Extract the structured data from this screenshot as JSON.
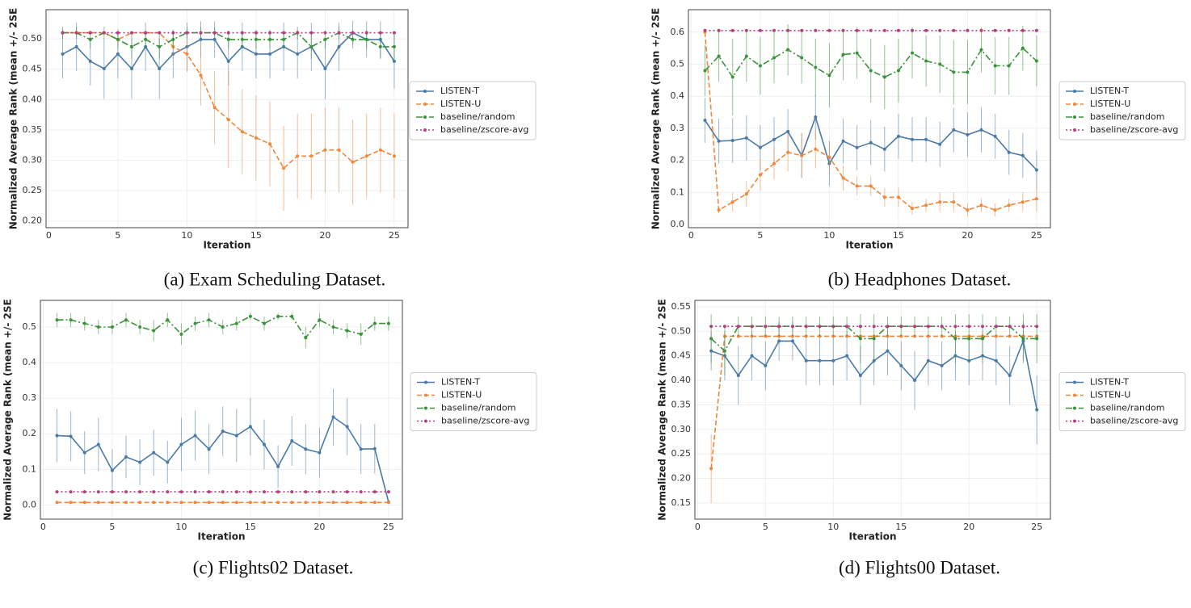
{
  "chart_data": [
    {
      "type": "line",
      "caption": "(a) Exam Scheduling Dataset.",
      "xlabel": "Iteration",
      "ylabel": "Normalized Average Rank (mean +/- 2SE",
      "x": [
        1,
        2,
        3,
        4,
        5,
        6,
        7,
        8,
        9,
        10,
        11,
        12,
        13,
        14,
        15,
        16,
        17,
        18,
        19,
        20,
        21,
        22,
        23,
        24,
        25
      ],
      "xlim": [
        -0.2,
        26.0
      ],
      "xticks": [
        0,
        5,
        10,
        15,
        20,
        25
      ],
      "ylim": [
        0.189,
        0.548
      ],
      "yticks": [
        {
          "value": 0.2,
          "label": "0.20"
        },
        0.25,
        {
          "value": 0.3,
          "label": "0.30"
        },
        0.35,
        {
          "value": 0.4,
          "label": "0.40"
        },
        0.45,
        {
          "value": 0.5,
          "label": "0.50"
        }
      ],
      "grid": true,
      "legend": "outside right",
      "series": [
        {
          "name": "LISTEN-T",
          "color": "#4a7aa8",
          "dash": "solid",
          "values": [
            0.475,
            0.487,
            0.463,
            0.451,
            0.475,
            0.451,
            0.487,
            0.451,
            0.475,
            0.487,
            0.499,
            0.499,
            0.463,
            0.487,
            0.475,
            0.475,
            0.487,
            0.475,
            0.487,
            0.451,
            0.487,
            0.51,
            0.499,
            0.499,
            0.463
          ],
          "errors": [
            0.04,
            0.04,
            0.04,
            0.05,
            0.04,
            0.05,
            0.04,
            0.05,
            0.04,
            0.04,
            0.03,
            0.03,
            0.04,
            0.04,
            0.04,
            0.04,
            0.04,
            0.04,
            0.04,
            0.05,
            0.04,
            0.02,
            0.03,
            0.03,
            0.045
          ]
        },
        {
          "name": "LISTEN-U",
          "color": "#f0873c",
          "dash": "dashed",
          "values": [
            0.51,
            0.51,
            0.51,
            0.51,
            0.499,
            0.51,
            0.51,
            0.51,
            0.487,
            0.475,
            0.44,
            0.387,
            0.367,
            0.347,
            0.337,
            0.327,
            0.287,
            0.307,
            0.307,
            0.317,
            0.317,
            0.297,
            0.307,
            0.317,
            0.307
          ],
          "errors": [
            0,
            0,
            0,
            0,
            0.01,
            0,
            0,
            0,
            0.02,
            0.03,
            0.05,
            0.06,
            0.08,
            0.07,
            0.07,
            0.07,
            0.07,
            0.07,
            0.07,
            0.07,
            0.07,
            0.07,
            0.07,
            0.07,
            0.07
          ]
        },
        {
          "name": "baseline/random",
          "color": "#3a923a",
          "dash": "dashdot",
          "values": [
            0.51,
            0.51,
            0.499,
            0.51,
            0.499,
            0.487,
            0.499,
            0.487,
            0.499,
            0.51,
            0.51,
            0.51,
            0.499,
            0.499,
            0.499,
            0.499,
            0.499,
            0.51,
            0.487,
            0.499,
            0.51,
            0.499,
            0.499,
            0.487,
            0.487
          ],
          "errors": [
            0.01,
            0.01,
            0.015,
            0.01,
            0.015,
            0.02,
            0.015,
            0.02,
            0.015,
            0.01,
            0.01,
            0.01,
            0.015,
            0.015,
            0.015,
            0.015,
            0.015,
            0.01,
            0.02,
            0.015,
            0.01,
            0.015,
            0.015,
            0.02,
            0.02
          ]
        },
        {
          "name": "baseline/zscore-avg",
          "color": "#b3417f",
          "dash": "dotted",
          "values": [
            0.51,
            0.51,
            0.51,
            0.51,
            0.51,
            0.51,
            0.51,
            0.51,
            0.51,
            0.51,
            0.51,
            0.51,
            0.51,
            0.51,
            0.51,
            0.51,
            0.51,
            0.51,
            0.51,
            0.51,
            0.51,
            0.51,
            0.51,
            0.51,
            0.51
          ]
        }
      ]
    },
    {
      "type": "line",
      "caption": "(b) Headphones Dataset.",
      "xlabel": "Iteration",
      "ylabel": "Normalized Average Rank (mean +/- 2SE",
      "x": [
        1,
        2,
        3,
        4,
        5,
        6,
        7,
        8,
        9,
        10,
        11,
        12,
        13,
        14,
        15,
        16,
        17,
        18,
        19,
        20,
        21,
        22,
        23,
        24,
        25
      ],
      "xlim": [
        -0.2,
        26.0
      ],
      "xticks": [
        0,
        5,
        10,
        15,
        20,
        25
      ],
      "ylim": [
        -0.01,
        0.67
      ],
      "yticks": [
        {
          "value": 0,
          "label": "0.0"
        },
        0.1,
        0.2,
        0.3,
        0.4,
        0.5,
        0.6
      ],
      "grid": true,
      "legend": "outside right",
      "series": [
        {
          "name": "LISTEN-T",
          "color": "#4a7aa8",
          "dash": "solid",
          "values": [
            0.325,
            0.26,
            0.262,
            0.27,
            0.24,
            0.265,
            0.29,
            0.215,
            0.335,
            0.19,
            0.26,
            0.24,
            0.255,
            0.235,
            0.275,
            0.265,
            0.265,
            0.25,
            0.295,
            0.28,
            0.295,
            0.275,
            0.225,
            0.215,
            0.17
          ],
          "errors": [
            0.07,
            0.07,
            0.07,
            0.07,
            0.07,
            0.07,
            0.07,
            0.07,
            0.07,
            0.07,
            0.07,
            0.07,
            0.07,
            0.07,
            0.07,
            0.07,
            0.07,
            0.07,
            0.07,
            0.07,
            0.07,
            0.07,
            0.07,
            0.07,
            0.06
          ]
        },
        {
          "name": "LISTEN-U",
          "color": "#f0873c",
          "dash": "dashed",
          "values": [
            0.6,
            0.045,
            0.07,
            0.095,
            0.155,
            0.19,
            0.225,
            0.215,
            0.235,
            0.21,
            0.145,
            0.12,
            0.12,
            0.085,
            0.085,
            0.05,
            0.06,
            0.07,
            0.07,
            0.045,
            0.06,
            0.045,
            0.06,
            0.07,
            0.08
          ],
          "errors": [
            0,
            0.01,
            0.03,
            0.04,
            0.05,
            0.05,
            0.06,
            0.07,
            0.06,
            0.05,
            0.04,
            0.03,
            0.03,
            0.03,
            0.03,
            0.02,
            0.02,
            0.03,
            0.03,
            0.02,
            0.02,
            0.02,
            0.02,
            0.03,
            0.04
          ]
        },
        {
          "name": "baseline/random",
          "color": "#3a923a",
          "dash": "dashdot",
          "values": [
            0.48,
            0.525,
            0.46,
            0.525,
            0.495,
            0.52,
            0.545,
            0.52,
            0.49,
            0.465,
            0.53,
            0.535,
            0.48,
            0.46,
            0.48,
            0.535,
            0.51,
            0.5,
            0.475,
            0.475,
            0.545,
            0.495,
            0.495,
            0.55,
            0.51
          ],
          "errors": [
            0.08,
            0.08,
            0.12,
            0.08,
            0.09,
            0.08,
            0.08,
            0.08,
            0.09,
            0.1,
            0.08,
            0.08,
            0.1,
            0.1,
            0.1,
            0.08,
            0.08,
            0.09,
            0.1,
            0.1,
            0.07,
            0.09,
            0.09,
            0.07,
            0.08
          ]
        },
        {
          "name": "baseline/zscore-avg",
          "color": "#b3417f",
          "dash": "dotted",
          "values": [
            0.605,
            0.605,
            0.605,
            0.605,
            0.605,
            0.605,
            0.605,
            0.605,
            0.605,
            0.605,
            0.605,
            0.605,
            0.605,
            0.605,
            0.605,
            0.605,
            0.605,
            0.605,
            0.605,
            0.605,
            0.605,
            0.605,
            0.605,
            0.605,
            0.605
          ]
        }
      ]
    },
    {
      "type": "line",
      "caption": "(c) Flights02 Dataset.",
      "xlabel": "Iteration",
      "ylabel": "Normalized Average Rank (mean +/- 2SE",
      "x": [
        1,
        2,
        3,
        4,
        5,
        6,
        7,
        8,
        9,
        10,
        11,
        12,
        13,
        14,
        15,
        16,
        17,
        18,
        19,
        20,
        21,
        22,
        23,
        24,
        25
      ],
      "xlim": [
        -0.2,
        26.0
      ],
      "xticks": [
        0,
        5,
        10,
        15,
        20,
        25
      ],
      "ylim": [
        -0.04,
        0.575
      ],
      "yticks": [
        {
          "value": 0,
          "label": "0.0"
        },
        0.1,
        0.2,
        0.3,
        0.4,
        0.5
      ],
      "grid": true,
      "legend": "outside right",
      "series": [
        {
          "name": "LISTEN-T",
          "color": "#4a7aa8",
          "dash": "solid",
          "values": [
            0.195,
            0.193,
            0.147,
            0.17,
            0.097,
            0.135,
            0.12,
            0.147,
            0.12,
            0.17,
            0.195,
            0.157,
            0.207,
            0.195,
            0.22,
            0.17,
            0.108,
            0.18,
            0.157,
            0.147,
            0.247,
            0.22,
            0.157,
            0.158,
            0.008
          ],
          "errors": [
            0.075,
            0.07,
            0.06,
            0.075,
            0.06,
            0.06,
            0.065,
            0.065,
            0.06,
            0.075,
            0.07,
            0.07,
            0.07,
            0.075,
            0.08,
            0.07,
            0.06,
            0.07,
            0.07,
            0.07,
            0.08,
            0.08,
            0.07,
            0.07,
            0.005
          ]
        },
        {
          "name": "LISTEN-U",
          "color": "#f0873c",
          "dash": "dashed",
          "values": [
            0.007,
            0.007,
            0.007,
            0.007,
            0.007,
            0.007,
            0.007,
            0.007,
            0.007,
            0.007,
            0.007,
            0.007,
            0.007,
            0.007,
            0.007,
            0.007,
            0.007,
            0.007,
            0.007,
            0.007,
            0.007,
            0.007,
            0.007,
            0.007,
            0.007
          ],
          "errors": [
            0.003,
            0.003,
            0.003,
            0.003,
            0.003,
            0.003,
            0.003,
            0.003,
            0.003,
            0.003,
            0.003,
            0.003,
            0.003,
            0.003,
            0.003,
            0.003,
            0.003,
            0.003,
            0.003,
            0.003,
            0.003,
            0.003,
            0.003,
            0.003,
            0.003
          ]
        },
        {
          "name": "baseline/random",
          "color": "#3a923a",
          "dash": "dashdot",
          "values": [
            0.52,
            0.52,
            0.51,
            0.5,
            0.5,
            0.52,
            0.5,
            0.49,
            0.52,
            0.48,
            0.51,
            0.52,
            0.5,
            0.51,
            0.53,
            0.51,
            0.53,
            0.53,
            0.47,
            0.52,
            0.5,
            0.49,
            0.48,
            0.51,
            0.51
          ],
          "errors": [
            0.02,
            0.02,
            0.02,
            0.02,
            0.02,
            0.02,
            0.02,
            0.03,
            0.02,
            0.03,
            0.02,
            0.02,
            0.02,
            0.02,
            0.01,
            0.02,
            0.01,
            0.01,
            0.03,
            0.02,
            0.02,
            0.02,
            0.03,
            0.02,
            0.02
          ]
        },
        {
          "name": "baseline/zscore-avg",
          "color": "#b3417f",
          "dash": "dotted",
          "values": [
            0.037,
            0.037,
            0.037,
            0.037,
            0.037,
            0.037,
            0.037,
            0.037,
            0.037,
            0.037,
            0.037,
            0.037,
            0.037,
            0.037,
            0.037,
            0.037,
            0.037,
            0.037,
            0.037,
            0.037,
            0.037,
            0.037,
            0.037,
            0.037,
            0.037
          ]
        }
      ]
    },
    {
      "type": "line",
      "caption": "(d) Flights00 Dataset.",
      "xlabel": "Iteration",
      "ylabel": "Normalized Average Rank (mean +/- 2SE",
      "x": [
        1,
        2,
        3,
        4,
        5,
        6,
        7,
        8,
        9,
        10,
        11,
        12,
        13,
        14,
        15,
        16,
        17,
        18,
        19,
        20,
        21,
        22,
        23,
        24,
        25
      ],
      "xlim": [
        -0.2,
        26.0
      ],
      "xticks": [
        0,
        5,
        10,
        15,
        20,
        25
      ],
      "ylim": [
        0.117,
        0.563
      ],
      "yticks": [
        0.15,
        {
          "value": 0.2,
          "label": "0.20"
        },
        0.25,
        {
          "value": 0.3,
          "label": "0.30"
        },
        0.35,
        {
          "value": 0.4,
          "label": "0.40"
        },
        0.45,
        {
          "value": 0.5,
          "label": "0.50"
        },
        0.55
      ],
      "grid": true,
      "legend": "outside right",
      "series": [
        {
          "name": "LISTEN-T",
          "color": "#4a7aa8",
          "dash": "solid",
          "values": [
            0.46,
            0.45,
            0.41,
            0.45,
            0.43,
            0.48,
            0.48,
            0.44,
            0.44,
            0.44,
            0.45,
            0.41,
            0.44,
            0.46,
            0.43,
            0.4,
            0.44,
            0.43,
            0.45,
            0.44,
            0.45,
            0.44,
            0.41,
            0.48,
            0.34
          ],
          "errors": [
            0.04,
            0.05,
            0.06,
            0.05,
            0.05,
            0.04,
            0.04,
            0.05,
            0.05,
            0.05,
            0.05,
            0.06,
            0.05,
            0.05,
            0.05,
            0.06,
            0.05,
            0.05,
            0.05,
            0.05,
            0.05,
            0.05,
            0.06,
            0.04,
            0.07
          ]
        },
        {
          "name": "LISTEN-U",
          "color": "#f0873c",
          "dash": "dashed",
          "values": [
            0.22,
            0.49,
            0.49,
            0.49,
            0.49,
            0.49,
            0.49,
            0.49,
            0.49,
            0.49,
            0.49,
            0.49,
            0.49,
            0.49,
            0.49,
            0.49,
            0.49,
            0.49,
            0.49,
            0.49,
            0.49,
            0.49,
            0.49,
            0.49,
            0.49
          ],
          "errors": [
            0.07,
            0,
            0,
            0,
            0,
            0,
            0,
            0,
            0,
            0,
            0,
            0,
            0,
            0,
            0,
            0,
            0,
            0,
            0,
            0,
            0,
            0,
            0,
            0,
            0
          ]
        },
        {
          "name": "baseline/random",
          "color": "#3a923a",
          "dash": "dashdot",
          "values": [
            0.485,
            0.46,
            0.51,
            0.51,
            0.51,
            0.51,
            0.51,
            0.51,
            0.51,
            0.51,
            0.51,
            0.485,
            0.485,
            0.51,
            0.51,
            0.51,
            0.51,
            0.51,
            0.485,
            0.485,
            0.485,
            0.51,
            0.51,
            0.485,
            0.485
          ],
          "errors": [
            0.05,
            0.05,
            0.02,
            0.02,
            0.02,
            0.02,
            0.02,
            0.02,
            0.02,
            0.02,
            0.02,
            0.05,
            0.05,
            0.02,
            0.02,
            0.02,
            0.02,
            0.02,
            0.05,
            0.05,
            0.05,
            0.02,
            0.02,
            0.05,
            0.05
          ]
        },
        {
          "name": "baseline/zscore-avg",
          "color": "#b3417f",
          "dash": "dotted",
          "values": [
            0.51,
            0.51,
            0.51,
            0.51,
            0.51,
            0.51,
            0.51,
            0.51,
            0.51,
            0.51,
            0.51,
            0.51,
            0.51,
            0.51,
            0.51,
            0.51,
            0.51,
            0.51,
            0.51,
            0.51,
            0.51,
            0.51,
            0.51,
            0.51,
            0.51
          ]
        }
      ]
    }
  ]
}
